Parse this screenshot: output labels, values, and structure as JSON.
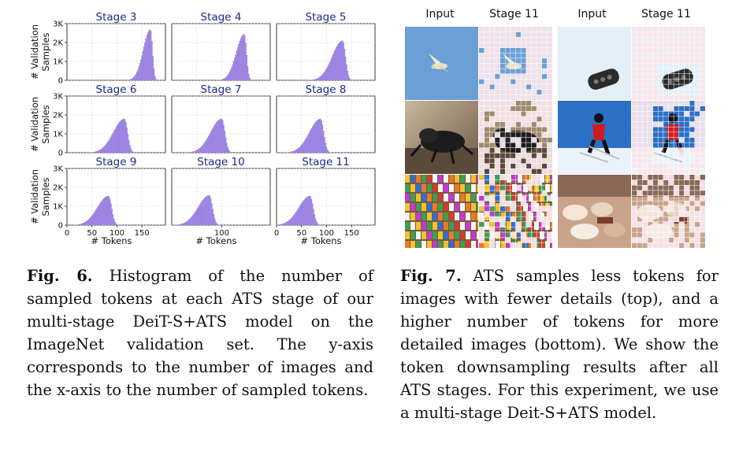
{
  "figure6": {
    "chart_data": [
      {
        "type": "bar",
        "title": "Stage 3",
        "ylabel": "# Validation Samples",
        "xlabel": "",
        "ylim": [
          0,
          3000
        ],
        "xlim": [
          0,
          197
        ],
        "peak": 167,
        "spread": 9,
        "peak_value": 2700
      },
      {
        "type": "bar",
        "title": "Stage 4",
        "ylabel": "",
        "xlabel": "",
        "ylim": [
          0,
          3000
        ],
        "xlim": [
          0,
          197
        ],
        "peak": 145,
        "spread": 10,
        "peak_value": 2450
      },
      {
        "type": "bar",
        "title": "Stage 5",
        "ylabel": "",
        "xlabel": "",
        "ylim": [
          0,
          3000
        ],
        "xlim": [
          0,
          197
        ],
        "peak": 132,
        "spread": 13,
        "peak_value": 2100
      },
      {
        "type": "bar",
        "title": "Stage 6",
        "ylabel": "# Validation Samples",
        "xlabel": "",
        "ylim": [
          0,
          3000
        ],
        "xlim": [
          0,
          197
        ],
        "peak": 115,
        "spread": 14,
        "peak_value": 1800
      },
      {
        "type": "bar",
        "title": "Stage 7",
        "ylabel": "",
        "xlabel": "",
        "ylim": [
          0,
          3000
        ],
        "xlim": [
          0,
          197
        ],
        "peak": 100,
        "spread": 14,
        "peak_value": 1800
      },
      {
        "type": "bar",
        "title": "Stage 8",
        "ylabel": "",
        "xlabel": "",
        "ylim": [
          0,
          3000
        ],
        "xlim": [
          0,
          197
        ],
        "peak": 88,
        "spread": 14,
        "peak_value": 1800
      },
      {
        "type": "bar",
        "title": "Stage 9",
        "ylabel": "# Validation Samples",
        "xlabel": "# Tokens",
        "ylim": [
          0,
          3000
        ],
        "xlim": [
          0,
          197
        ],
        "peak": 83,
        "spread": 14,
        "peak_value": 1550
      },
      {
        "type": "bar",
        "title": "Stage 10",
        "ylabel": "",
        "xlabel": "# Tokens",
        "ylim": [
          0,
          3000
        ],
        "xlim": [
          0,
          197
        ],
        "peak": 75,
        "spread": 14,
        "peak_value": 1580
      },
      {
        "type": "bar",
        "title": "Stage 11",
        "ylabel": "",
        "xlabel": "# Tokens",
        "ylim": [
          0,
          3000
        ],
        "xlim": [
          0,
          197
        ],
        "peak": 67,
        "spread": 14,
        "peak_value": 1550
      }
    ],
    "y_ticks": [
      "0",
      "1K",
      "2K",
      "3K"
    ],
    "x_ticks_a": [
      "0",
      "50",
      "100",
      "150"
    ],
    "x_ticks_b": [
      "100"
    ],
    "x_ticks_c": [
      "0",
      "50",
      "100",
      "150"
    ],
    "ylabel_line1": "# Validation",
    "ylabel_line2": "Samples",
    "bar_color": "#9b7fe0"
  },
  "figure7": {
    "headers": [
      "Input",
      "Stage 11",
      "Input",
      "Stage 11"
    ],
    "rows": [
      [
        "bird-sky",
        "bird-sky-sampled",
        "car-key",
        "car-key-sampled"
      ],
      [
        "beetle",
        "beetle-sampled",
        "skier",
        "skier-sampled"
      ],
      [
        "store-shelf",
        "store-shelf-sampled",
        "bakery",
        "bakery-sampled"
      ]
    ]
  },
  "captions": {
    "fig6_label": "Fig. 6.",
    "fig6_text": " Histogram of the number of sampled tokens at each ATS stage of our multi-stage DeiT-S+ATS model on the ImageNet validation set. The y-axis corresponds to the number of images and the x-axis to the number of sampled tokens.",
    "fig7_label": "Fig. 7.",
    "fig7_text": "  ATS samples less tokens for images with fewer details (top), and a higher number of tokens for more detailed images (bottom). We show the token downsampling results after all ATS stages. For this experiment, we use a multi-stage Deit-S+ATS model."
  }
}
